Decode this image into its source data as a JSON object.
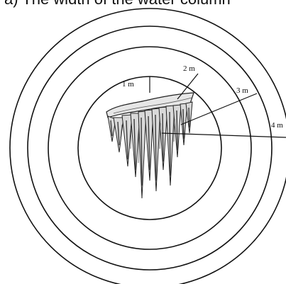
{
  "header_fragment": "a) The width of the water column",
  "radius_labels": [
    "1 m",
    "2 m",
    "3 m",
    "4 m"
  ],
  "colors": {
    "ring_stroke": "#111111",
    "background": "#ffffff",
    "icicle_fill": "#e6e6e6",
    "icicle_shadow": "#3a3a3a"
  }
}
